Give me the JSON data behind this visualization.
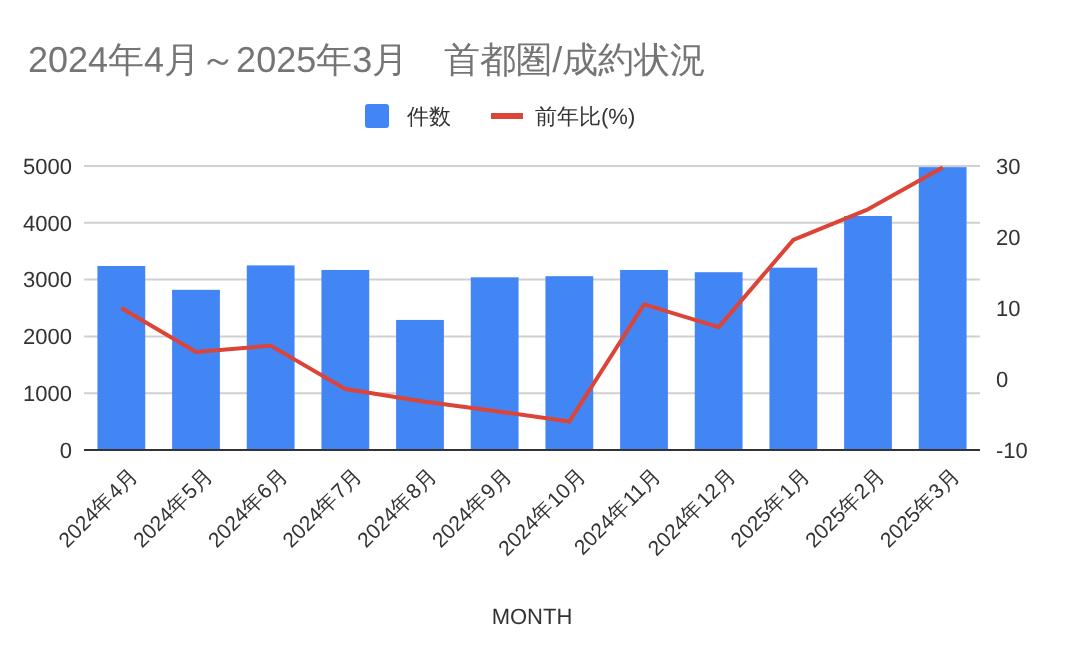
{
  "chart_data": {
    "type": "bar",
    "title": "2024年4月～2025年3月　首都圏/成約状況",
    "xlabel": "MONTH",
    "categories": [
      "2024年4月",
      "2024年5月",
      "2024年6月",
      "2024年7月",
      "2024年8月",
      "2024年9月",
      "2024年10月",
      "2024年11月",
      "2024年12月",
      "2025年1月",
      "2025年2月",
      "2025年3月"
    ],
    "series": [
      {
        "name": "件数",
        "color": "#4285f4",
        "values": [
          3240,
          2820,
          3250,
          3170,
          2290,
          3040,
          3060,
          3170,
          3130,
          3210,
          4120,
          4980
        ]
      },
      {
        "name": "前年比(%)",
        "type": "line",
        "axis": "y2",
        "color": "#db4437",
        "values": [
          10.0,
          3.8,
          4.7,
          -1.4,
          -3.1,
          -4.5,
          -6.0,
          10.5,
          7.3,
          19.6,
          23.9,
          29.8
        ]
      }
    ],
    "ylim": [
      0,
      5000
    ],
    "yticks": [
      0,
      1000,
      2000,
      3000,
      4000,
      5000
    ],
    "y2lim": [
      -10,
      30
    ],
    "y2ticks": [
      -10,
      0,
      10,
      20,
      30
    ],
    "grid": "y",
    "legend": "top",
    "marker": "none",
    "line_style": "solid"
  }
}
